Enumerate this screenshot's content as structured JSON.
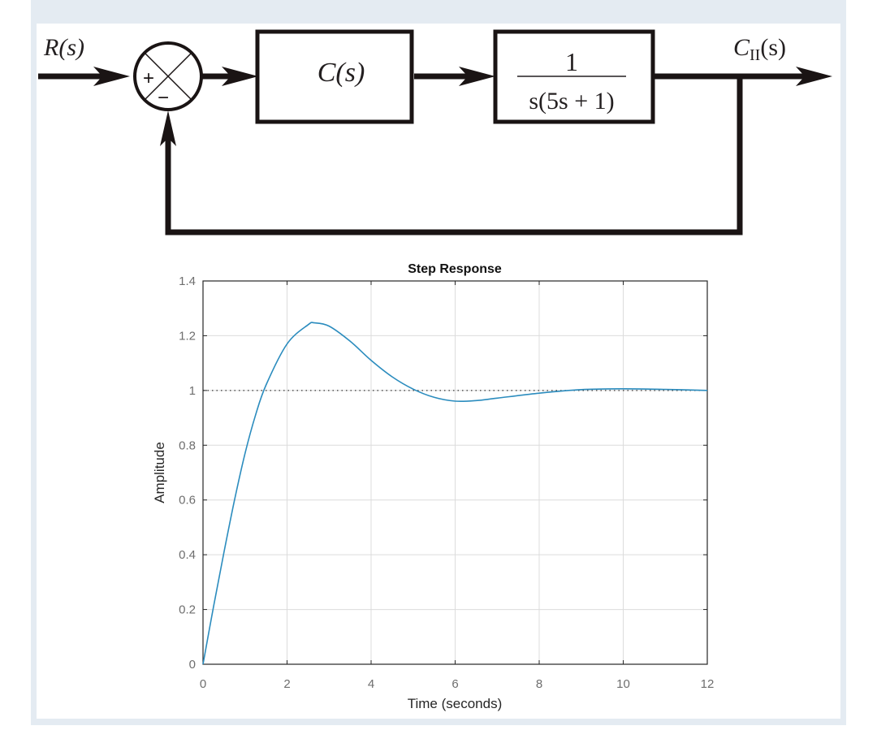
{
  "block_diagram": {
    "input_label": "R(s)",
    "output_label_main": "C",
    "output_label_sub": "II",
    "output_label_tail": "(s)",
    "summing_junction": {
      "plus_sign": "+",
      "minus_sign": "−"
    },
    "controller_block": "C(s)",
    "plant_block": {
      "numerator": "1",
      "denominator": "s(5s + 1)"
    },
    "feedback": "unity negative feedback"
  },
  "chart_data": {
    "type": "line",
    "title": "Step Response",
    "xlabel": "Time (seconds)",
    "ylabel": "Amplitude",
    "xlim": [
      0,
      12
    ],
    "ylim": [
      0,
      1.4
    ],
    "xticks": [
      "0",
      "2",
      "4",
      "6",
      "8",
      "10",
      "12"
    ],
    "yticks": [
      "0",
      "0.2",
      "0.4",
      "0.6",
      "0.8",
      "1",
      "1.2",
      "1.4"
    ],
    "grid": true,
    "reference_line": {
      "y": 1,
      "style": "dotted"
    },
    "series": [
      {
        "name": "Step response",
        "color": "#2b8cbe",
        "x": [
          0,
          0.25,
          0.5,
          0.75,
          1,
          1.25,
          1.5,
          2,
          2.5,
          2.65,
          3,
          3.5,
          4,
          4.5,
          5,
          5.5,
          6,
          6.5,
          7,
          8,
          9,
          10,
          11,
          12
        ],
        "values": [
          0,
          0.21,
          0.41,
          0.6,
          0.77,
          0.91,
          1.02,
          1.17,
          1.24,
          1.247,
          1.235,
          1.18,
          1.11,
          1.05,
          1.005,
          0.975,
          0.961,
          0.963,
          0.972,
          0.99,
          1.003,
          1.006,
          1.004,
          1.0
        ]
      }
    ]
  }
}
